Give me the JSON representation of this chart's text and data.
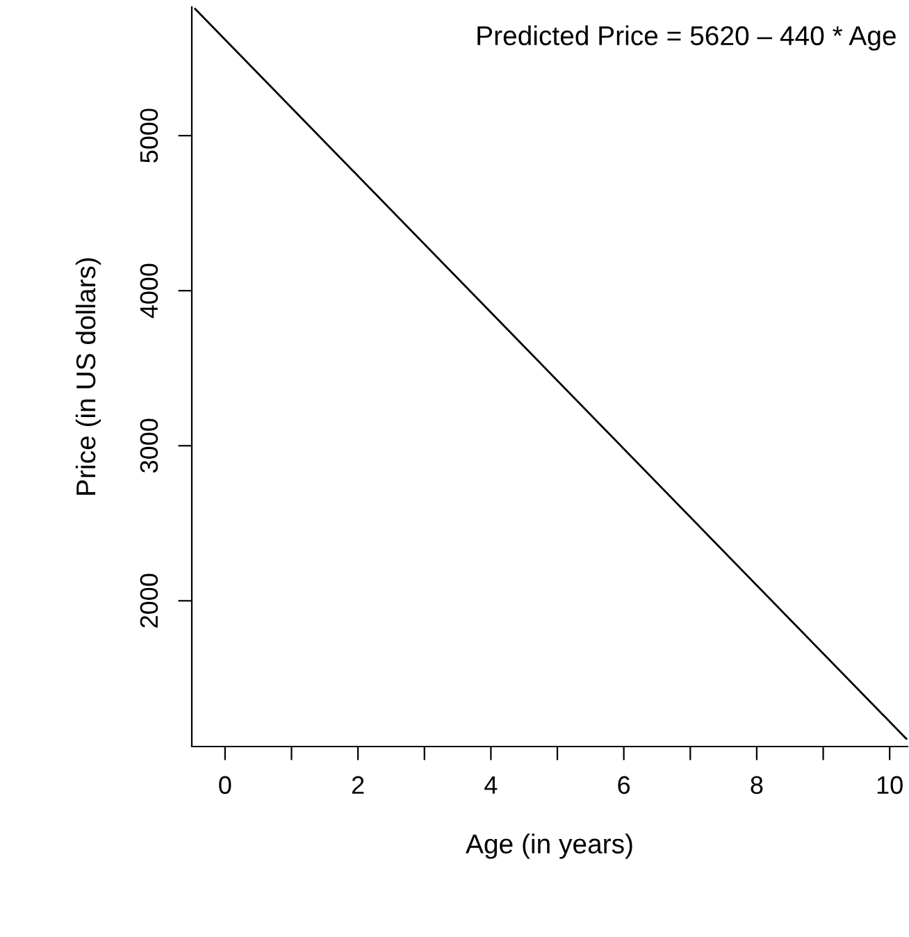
{
  "chart_data": {
    "type": "line",
    "xlabel": "Age (in years)",
    "ylabel": "Price (in US dollars)",
    "x": [
      -0.45,
      10.25
    ],
    "series": [
      {
        "color": "#000000",
        "values": [
          5818,
          1110
        ]
      }
    ],
    "xlim": [
      -0.5,
      10.27
    ],
    "ylim": [
      1060,
      5830
    ],
    "xticks": [
      0,
      {
        "value": 1,
        "label": null
      },
      2,
      {
        "value": 3,
        "label": null
      },
      4,
      {
        "value": 5,
        "label": null
      },
      6,
      {
        "value": 7,
        "label": null
      },
      8,
      {
        "value": 9,
        "label": null
      },
      10
    ],
    "yticks": [
      2000,
      3000,
      4000,
      5000
    ],
    "annotations": [
      "Predicted Price = 5620 – 440 * Age"
    ],
    "grid": false,
    "legend": false,
    "marker": "none",
    "line_style": "solid"
  }
}
